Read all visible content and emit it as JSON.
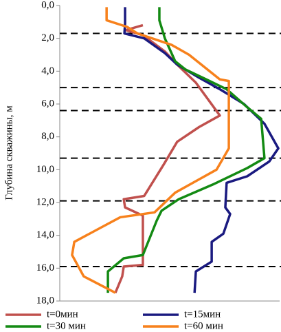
{
  "chart_data": {
    "type": "line",
    "y_label": "Глубина скважины, м",
    "ylim": [
      0,
      18
    ],
    "y_inverted": true,
    "yticks": [
      {
        "value": 0,
        "label": "0,0"
      },
      {
        "value": 2,
        "label": "2,0"
      },
      {
        "value": 4,
        "label": "4,0"
      },
      {
        "value": 6,
        "label": "6,0"
      },
      {
        "value": 8,
        "label": "8,0"
      },
      {
        "value": 10,
        "label": "10,0"
      },
      {
        "value": 12,
        "label": "12,0"
      },
      {
        "value": 14,
        "label": "14,0"
      },
      {
        "value": 16,
        "label": "16,0"
      },
      {
        "value": 18,
        "label": "18,0"
      }
    ],
    "xlim": [
      0,
      100
    ],
    "hlines": [
      1.7,
      5.0,
      6.4,
      9.3,
      11.9,
      15.9
    ],
    "series": [
      {
        "name": "t=0мин",
        "color": "#c0504d",
        "x": [
          37.8,
          30,
          37.8,
          47.8,
          53.4,
          61.9,
          72.8,
          63.4,
          53.4,
          47.2,
          38.4,
          29.1,
          29.7,
          37.8,
          37.8,
          29.1,
          28.4,
          25.3
        ],
        "y": [
          1.2,
          1.5,
          1.8,
          2.8,
          3.6,
          4.7,
          6.7,
          7.4,
          8.3,
          9.7,
          11.6,
          11.8,
          12.3,
          12.8,
          15.8,
          15.9,
          16.5,
          17.5
        ]
      },
      {
        "name": "t=15мин",
        "color": "#1a1a80",
        "x": [
          29.7,
          29.7,
          29.4,
          38.4,
          47.8,
          53.4,
          63.4,
          72.8,
          83.8,
          93.1,
          99.4,
          95.3,
          85.3,
          75.9,
          75.3,
          77.5,
          74.4,
          69.1,
          69.1,
          61.9,
          61.3
        ],
        "y": [
          0.1,
          1.1,
          1.7,
          2.0,
          2.9,
          3.6,
          4.4,
          5.1,
          6.0,
          7.2,
          8.7,
          9.5,
          10.4,
          10.8,
          12.3,
          12.7,
          13.9,
          14.4,
          15.6,
          16.2,
          17.5
        ]
      },
      {
        "name": "t=30 мин",
        "color": "#138a13",
        "x": [
          45.3,
          45.3,
          47.8,
          52.5,
          57.2,
          66.6,
          75.9,
          85.3,
          91.6,
          93.1,
          85.3,
          69.7,
          54.1,
          46.3,
          44.1,
          37.8,
          29.1,
          21.9,
          21.9
        ],
        "y": [
          0.1,
          0.9,
          2.0,
          3.4,
          3.9,
          4.5,
          5.1,
          6.2,
          6.9,
          9.3,
          9.9,
          10.9,
          11.8,
          12.5,
          13.1,
          15.2,
          15.4,
          16.2,
          17.5
        ]
      },
      {
        "name": "t=60 мин",
        "color": "#f7811c",
        "x": [
          21.3,
          21.3,
          30.6,
          35.3,
          50.9,
          58.8,
          72.8,
          76.9,
          76.9,
          71.3,
          61.9,
          52.5,
          43.1,
          27.5,
          19.1,
          6.6,
          5.6,
          10.9,
          25.3
        ],
        "y": [
          0.1,
          0.9,
          1.3,
          1.7,
          2.4,
          3.0,
          4.5,
          4.6,
          8.7,
          10.0,
          10.7,
          11.4,
          12.6,
          12.9,
          13.5,
          14.4,
          15.2,
          16.5,
          17.5
        ]
      }
    ]
  }
}
